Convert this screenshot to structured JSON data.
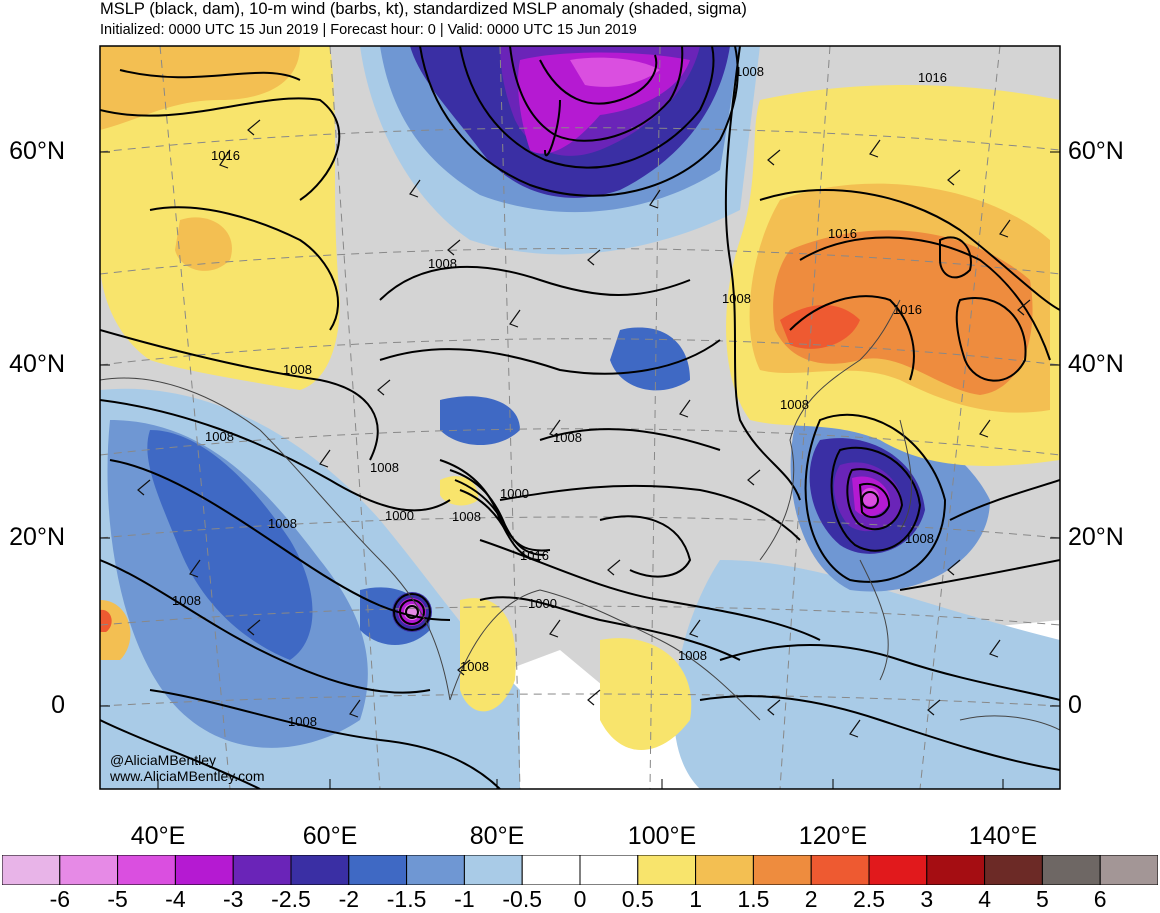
{
  "title": "MSLP (black, dam), 10-m wind (barbs, kt), standardized MSLP anomaly (shaded, sigma)",
  "subtitle": "Initialized: 0000 UTC 15 Jun 2019 | Forecast hour: 0 | Valid: 0000 UTC 15 Jun 2019",
  "lat_labels": [
    "60°N",
    "40°N",
    "20°N",
    "0"
  ],
  "lon_labels": [
    "40°E",
    "60°E",
    "80°E",
    "100°E",
    "120°E",
    "140°E"
  ],
  "credit": [
    "@AliciaMBentley",
    "www.AliciaMBentley.com"
  ],
  "isobar_labels": [
    "1008",
    "1016",
    "1016",
    "1008",
    "1016",
    "1008",
    "1016",
    "1008",
    "1008",
    "1008",
    "1008",
    "1008",
    "1000",
    "1008",
    "1000",
    "1008",
    "1016",
    "1008",
    "1008",
    "1000",
    "1008",
    "1008",
    "1008"
  ],
  "colorbar": {
    "labels": [
      "-6",
      "-5",
      "-4",
      "-3",
      "-2.5",
      "-2",
      "-1.5",
      "-1",
      "-0.5",
      "0",
      "0.5",
      "1",
      "1.5",
      "2",
      "2.5",
      "3",
      "4",
      "5",
      "6"
    ],
    "colors": [
      "#e8b4e8",
      "#e68ae6",
      "#da4fe0",
      "#b51ad2",
      "#6a24b8",
      "#3a2fa4",
      "#3f69c4",
      "#6f97d3",
      "#a9cbe7",
      "#ffffff",
      "#ffffff",
      "#f8e46c",
      "#f3bf52",
      "#ee8c3e",
      "#ee5a31",
      "#e1191c",
      "#a50d12",
      "#6c2a26",
      "#6e6764",
      "#a39696"
    ]
  }
}
